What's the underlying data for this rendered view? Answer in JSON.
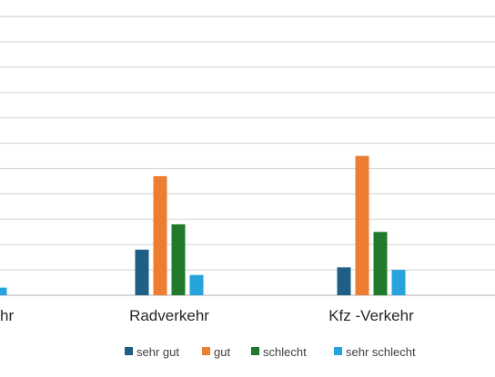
{
  "chart_data": {
    "type": "bar",
    "categories": [
      "Fußverkehr",
      "Radverkehr",
      "Kfz -Verkehr"
    ],
    "visible_category_labels": [
      "hr",
      "Radverkehr",
      "Kfz -Verkehr"
    ],
    "series": [
      {
        "name": "sehr gut",
        "color": "#1f5f86",
        "values": [
          null,
          18,
          11
        ]
      },
      {
        "name": "gut",
        "color": "#ed7d31",
        "values": [
          null,
          47,
          55
        ]
      },
      {
        "name": "schlecht",
        "color": "#217a2c",
        "values": [
          null,
          28,
          25
        ]
      },
      {
        "name": "sehr schlecht",
        "color": "#27a3db",
        "values": [
          3,
          8,
          10
        ]
      }
    ],
    "ylim": [
      0,
      115
    ],
    "grid": true,
    "legend_position": "bottom"
  }
}
